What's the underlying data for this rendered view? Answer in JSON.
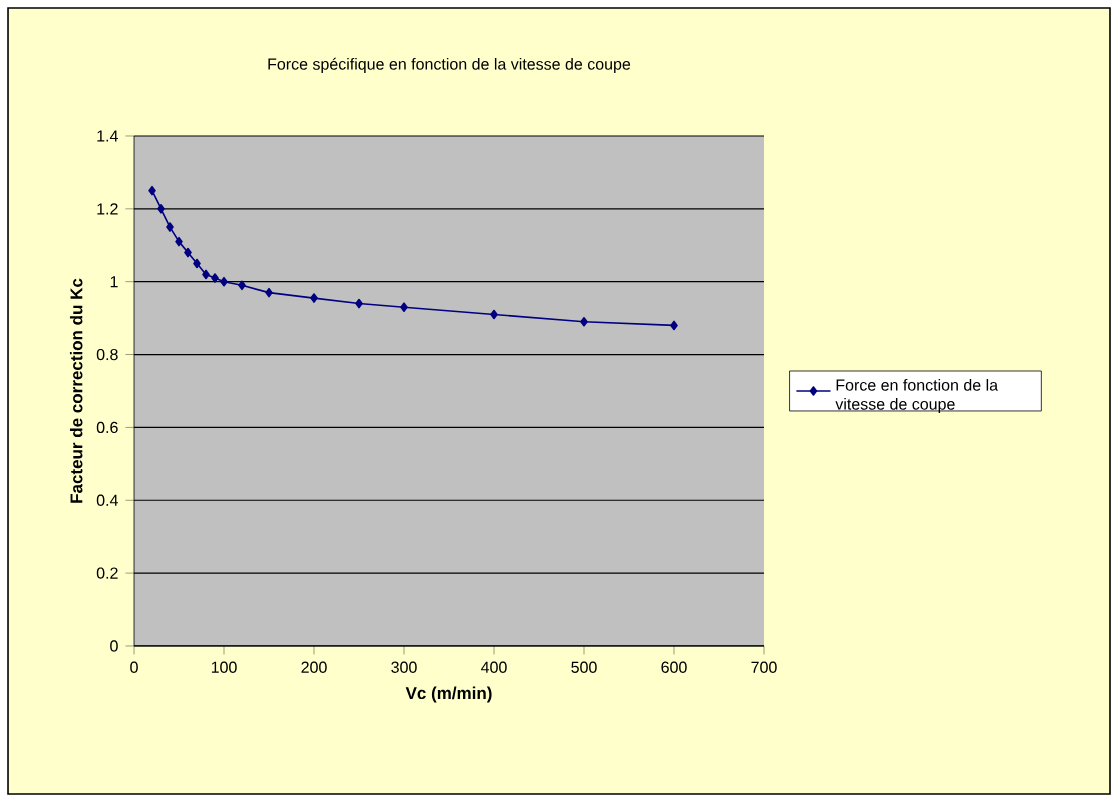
{
  "chart_data": {
    "type": "line",
    "title": "Force spécifique en fonction de la vitesse de coupe",
    "xlabel": "Vc (m/min)",
    "ylabel": "Facteur de correction du Kc",
    "x": [
      20,
      30,
      40,
      50,
      60,
      70,
      80,
      90,
      100,
      120,
      150,
      200,
      250,
      300,
      400,
      500,
      600
    ],
    "series": [
      {
        "name": "Force en fonction de la vitesse de coupe",
        "color": "#000080",
        "values": [
          1.25,
          1.2,
          1.15,
          1.11,
          1.08,
          1.05,
          1.02,
          1.01,
          1.0,
          0.99,
          0.97,
          0.955,
          0.94,
          0.93,
          0.91,
          0.89,
          0.88
        ]
      }
    ],
    "xlim": [
      0,
      700
    ],
    "xticks": [
      0,
      100,
      200,
      300,
      400,
      500,
      600,
      700
    ],
    "ylim": [
      0,
      1.4
    ],
    "yticks": [
      0,
      0.2,
      0.4,
      0.6,
      0.8,
      1,
      1.2,
      1.4
    ],
    "grid": "y",
    "legend": "right",
    "marker": "diamond",
    "line_style": "solid"
  }
}
